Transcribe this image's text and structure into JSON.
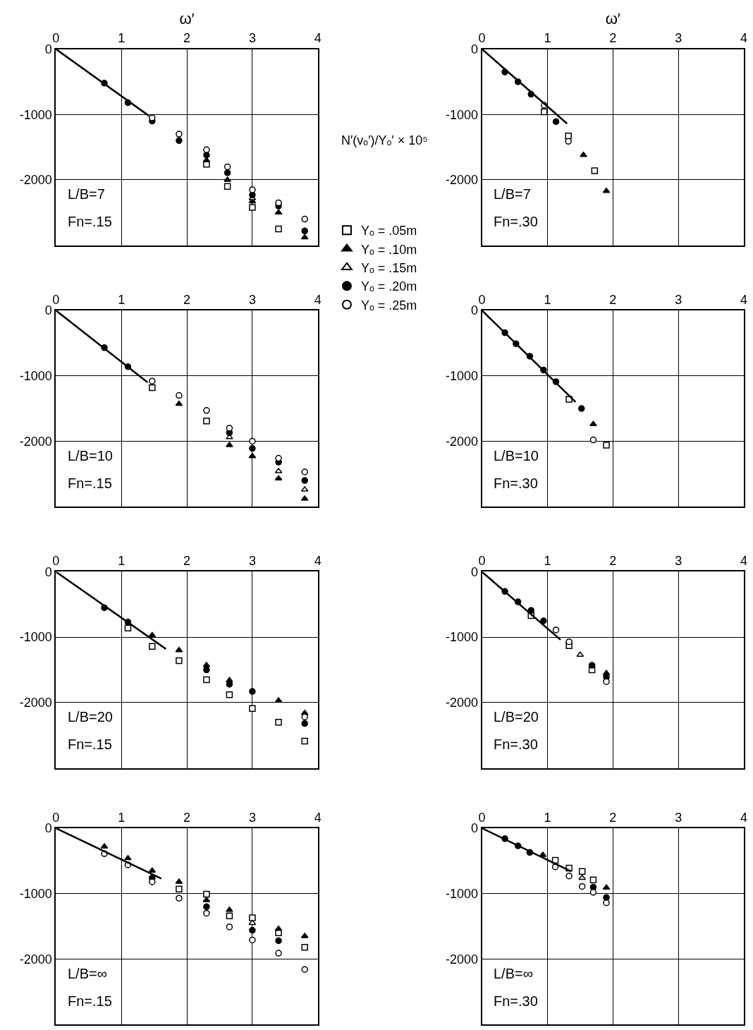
{
  "chart_data": [
    {
      "type": "scatter",
      "xlabel": "ω′",
      "legend": "right",
      "xlim": [
        0,
        4
      ],
      "ylim": [
        -3000,
        0
      ],
      "xticks": [
        0,
        1,
        2,
        3,
        4
      ],
      "yticks": [
        0,
        -1000,
        -2000
      ],
      "grid": true,
      "annotations": [
        "L/B=7",
        "Fn=.15"
      ],
      "x": [
        0.74,
        1.1,
        1.47,
        1.88,
        2.3,
        2.62,
        3.0,
        3.4,
        3.8
      ],
      "series": [
        {
          "name": "Yₒ = .05m",
          "marker": "square",
          "color": "#ffffff",
          "values": [
            null,
            null,
            null,
            null,
            -1760,
            -2100,
            -2420,
            -2750,
            null
          ]
        },
        {
          "name": "Yₒ = .10m",
          "marker": "triangle",
          "color": "#000000",
          "values": [
            null,
            null,
            null,
            null,
            -1700,
            -2000,
            -2330,
            -2500,
            -2880
          ]
        },
        {
          "name": "Yₒ = .15m",
          "marker": "triangle",
          "color": "#ffffff",
          "values": [
            null,
            null,
            null,
            null,
            null,
            null,
            -2280,
            null,
            null
          ]
        },
        {
          "name": "Yₒ = .20m",
          "marker": "circle",
          "color": "#000000",
          "values": [
            -520,
            -820,
            -1100,
            -1400,
            -1620,
            -1890,
            -2230,
            -2400,
            -2780
          ]
        },
        {
          "name": "Yₒ = .25m",
          "marker": "circle",
          "color": "#ffffff",
          "values": [
            null,
            null,
            -1050,
            -1300,
            -1540,
            -1800,
            -2150,
            -2350,
            -2600
          ]
        },
        {
          "type": "line",
          "color": "#000000",
          "x": [
            0,
            1.42
          ],
          "values": [
            0,
            -1020
          ]
        }
      ]
    },
    {
      "type": "scatter",
      "xlabel": "ω′",
      "ylabel": "N′(vₒ′)/Yₒ′ × 10⁵",
      "xlim": [
        0,
        4
      ],
      "ylim": [
        -3000,
        0
      ],
      "xticks": [
        0,
        1,
        2,
        3,
        4
      ],
      "yticks": [
        0,
        -1000,
        -2000
      ],
      "grid": true,
      "annotations": [
        "L/B=7",
        "Fn=.30"
      ],
      "x": [
        0.35,
        0.55,
        0.75,
        0.95,
        1.13,
        1.32,
        1.55,
        1.72,
        1.9
      ],
      "series": [
        {
          "marker": "square",
          "color": "#ffffff",
          "values": [
            null,
            null,
            null,
            -960,
            null,
            -1330,
            null,
            -1860,
            null
          ]
        },
        {
          "marker": "triangle",
          "color": "#000000",
          "values": [
            null,
            null,
            null,
            null,
            null,
            null,
            -1620,
            null,
            -2170
          ]
        },
        {
          "marker": "triangle",
          "color": "#ffffff",
          "values": [
            null,
            null,
            null,
            null,
            null,
            null,
            null,
            null,
            null
          ]
        },
        {
          "marker": "circle",
          "color": "#000000",
          "values": [
            -350,
            -500,
            -690,
            null,
            -1110,
            null,
            null,
            null,
            null
          ]
        },
        {
          "marker": "circle",
          "color": "#ffffff",
          "values": [
            null,
            null,
            null,
            -860,
            null,
            -1410,
            null,
            null,
            null
          ]
        },
        {
          "type": "line",
          "color": "#000000",
          "x": [
            0,
            1.3
          ],
          "values": [
            0,
            -1140
          ]
        }
      ]
    },
    {
      "type": "scatter",
      "xlim": [
        0,
        4
      ],
      "ylim": [
        -3000,
        0
      ],
      "xticks": [
        0,
        1,
        2,
        3,
        4
      ],
      "yticks": [
        0,
        -1000,
        -2000
      ],
      "grid": true,
      "annotations": [
        "L/B=10",
        "Fn=.15"
      ],
      "x": [
        0.74,
        1.1,
        1.47,
        1.88,
        2.3,
        2.65,
        3.0,
        3.4,
        3.8
      ],
      "series": [
        {
          "marker": "square",
          "color": "#ffffff",
          "values": [
            null,
            null,
            -1180,
            null,
            -1690,
            null,
            null,
            null,
            null
          ]
        },
        {
          "marker": "triangle",
          "color": "#000000",
          "values": [
            null,
            null,
            null,
            -1430,
            null,
            -2060,
            -2230,
            -2570,
            -2880
          ]
        },
        {
          "marker": "triangle",
          "color": "#ffffff",
          "values": [
            null,
            null,
            null,
            null,
            null,
            -1940,
            null,
            -2460,
            -2740
          ]
        },
        {
          "marker": "circle",
          "color": "#000000",
          "values": [
            -570,
            -860,
            null,
            null,
            null,
            -1870,
            -2110,
            -2320,
            -2600
          ]
        },
        {
          "marker": "circle",
          "color": "#ffffff",
          "values": [
            null,
            null,
            -1080,
            -1300,
            -1530,
            -1800,
            -2000,
            -2260,
            -2470
          ]
        },
        {
          "type": "line",
          "color": "#000000",
          "x": [
            0,
            1.4
          ],
          "values": [
            0,
            -1100
          ]
        }
      ]
    },
    {
      "type": "scatter",
      "xlim": [
        0,
        4
      ],
      "ylim": [
        -3000,
        0
      ],
      "xticks": [
        0,
        1,
        2,
        3,
        4
      ],
      "yticks": [
        0,
        -1000,
        -2000
      ],
      "grid": true,
      "annotations": [
        "L/B=10",
        "Fn=.30"
      ],
      "x": [
        0.35,
        0.52,
        0.73,
        0.94,
        1.13,
        1.33,
        1.52,
        1.7,
        1.9
      ],
      "series": [
        {
          "marker": "square",
          "color": "#ffffff",
          "values": [
            null,
            null,
            null,
            null,
            null,
            -1360,
            null,
            null,
            -2060
          ]
        },
        {
          "marker": "triangle",
          "color": "#000000",
          "values": [
            null,
            null,
            null,
            null,
            null,
            null,
            null,
            -1740,
            null
          ]
        },
        {
          "marker": "triangle",
          "color": "#ffffff",
          "values": [
            null,
            null,
            null,
            null,
            null,
            null,
            null,
            null,
            null
          ]
        },
        {
          "marker": "circle",
          "color": "#000000",
          "values": [
            -340,
            -510,
            -700,
            -910,
            -1090,
            null,
            -1500,
            null,
            null
          ]
        },
        {
          "marker": "circle",
          "color": "#ffffff",
          "values": [
            null,
            null,
            null,
            null,
            null,
            null,
            null,
            -1980,
            null
          ]
        },
        {
          "type": "line",
          "color": "#000000",
          "x": [
            0,
            1.43
          ],
          "values": [
            0,
            -1400
          ]
        }
      ]
    },
    {
      "type": "scatter",
      "xlim": [
        0,
        4
      ],
      "ylim": [
        -3000,
        0
      ],
      "xticks": [
        0,
        1,
        2,
        3,
        4
      ],
      "yticks": [
        0,
        -1000,
        -2000
      ],
      "grid": true,
      "annotations": [
        "L/B=20",
        "Fn=.15"
      ],
      "x": [
        0.74,
        1.1,
        1.47,
        1.88,
        2.3,
        2.65,
        3.0,
        3.4,
        3.8
      ],
      "series": [
        {
          "marker": "square",
          "color": "#ffffff",
          "values": [
            null,
            -860,
            -1140,
            -1360,
            -1650,
            -1880,
            -2090,
            -2300,
            -2590
          ]
        },
        {
          "marker": "triangle",
          "color": "#000000",
          "values": [
            null,
            null,
            -970,
            -1200,
            -1430,
            -1660,
            null,
            -1970,
            -2160
          ]
        },
        {
          "marker": "triangle",
          "color": "#ffffff",
          "values": [
            null,
            null,
            null,
            null,
            null,
            null,
            null,
            null,
            null
          ]
        },
        {
          "marker": "circle",
          "color": "#000000",
          "values": [
            -550,
            -770,
            null,
            null,
            -1500,
            -1720,
            -1830,
            null,
            -2320
          ]
        },
        {
          "marker": "circle",
          "color": "#ffffff",
          "values": [
            null,
            null,
            null,
            null,
            null,
            null,
            null,
            null,
            -2220
          ]
        },
        {
          "type": "line",
          "color": "#000000",
          "x": [
            0,
            1.68
          ],
          "values": [
            0,
            -1180
          ]
        }
      ]
    },
    {
      "type": "scatter",
      "xlim": [
        0,
        4
      ],
      "ylim": [
        -3000,
        0
      ],
      "xticks": [
        0,
        1,
        2,
        3,
        4
      ],
      "yticks": [
        0,
        -1000,
        -2000
      ],
      "grid": true,
      "annotations": [
        "L/B=20",
        "Fn=.30"
      ],
      "x": [
        0.35,
        0.55,
        0.75,
        0.94,
        1.13,
        1.33,
        1.5,
        1.68,
        1.9
      ],
      "series": [
        {
          "marker": "square",
          "color": "#ffffff",
          "values": [
            null,
            null,
            -670,
            null,
            null,
            -1130,
            null,
            -1500,
            null
          ]
        },
        {
          "marker": "triangle",
          "color": "#000000",
          "values": [
            null,
            null,
            null,
            null,
            null,
            null,
            null,
            null,
            -1550
          ]
        },
        {
          "marker": "triangle",
          "color": "#ffffff",
          "values": [
            null,
            null,
            null,
            null,
            null,
            null,
            -1270,
            null,
            null
          ]
        },
        {
          "marker": "circle",
          "color": "#000000",
          "values": [
            -300,
            -460,
            -590,
            -750,
            null,
            null,
            null,
            -1430,
            -1610
          ]
        },
        {
          "marker": "circle",
          "color": "#ffffff",
          "values": [
            null,
            null,
            null,
            null,
            -890,
            -1070,
            null,
            null,
            -1680
          ]
        },
        {
          "type": "line",
          "color": "#000000",
          "x": [
            0,
            1.2
          ],
          "values": [
            0,
            -1040
          ]
        }
      ]
    },
    {
      "type": "scatter",
      "xlim": [
        0,
        4
      ],
      "ylim": [
        -3000,
        0
      ],
      "xticks": [
        0,
        1,
        2,
        3,
        4
      ],
      "yticks": [
        0,
        -1000,
        -2000
      ],
      "grid": true,
      "annotations": [
        "L/B=∞",
        "Fn=.15"
      ],
      "x": [
        0.74,
        1.1,
        1.47,
        1.88,
        2.3,
        2.65,
        3.0,
        3.4,
        3.8
      ],
      "series": [
        {
          "marker": "square",
          "color": "#ffffff",
          "values": [
            null,
            null,
            null,
            -930,
            -1010,
            -1340,
            -1370,
            -1600,
            -1820
          ]
        },
        {
          "marker": "triangle",
          "color": "#000000",
          "values": [
            -280,
            -460,
            -650,
            -820,
            -1100,
            -1250,
            null,
            -1540,
            -1650
          ]
        },
        {
          "marker": "triangle",
          "color": "#ffffff",
          "values": [
            null,
            null,
            null,
            null,
            null,
            null,
            -1450,
            null,
            null
          ]
        },
        {
          "marker": "circle",
          "color": "#000000",
          "values": [
            null,
            null,
            -760,
            null,
            -1200,
            null,
            -1560,
            -1720,
            null
          ]
        },
        {
          "marker": "circle",
          "color": "#ffffff",
          "values": [
            -390,
            -560,
            -820,
            -1070,
            -1300,
            -1510,
            -1710,
            -1910,
            -2160
          ]
        },
        {
          "type": "line",
          "color": "#000000",
          "x": [
            0,
            1.61
          ],
          "values": [
            0,
            -770
          ]
        }
      ]
    },
    {
      "type": "scatter",
      "xlim": [
        0,
        4
      ],
      "ylim": [
        -3000,
        0
      ],
      "xticks": [
        0,
        1,
        2,
        3,
        4
      ],
      "yticks": [
        0,
        -1000,
        -2000
      ],
      "grid": true,
      "annotations": [
        "L/B=∞",
        "Fn=.30"
      ],
      "x": [
        0.35,
        0.55,
        0.73,
        0.93,
        1.12,
        1.33,
        1.53,
        1.7,
        1.9
      ],
      "series": [
        {
          "marker": "square",
          "color": "#ffffff",
          "values": [
            null,
            null,
            null,
            null,
            -490,
            -610,
            -660,
            -790,
            null
          ]
        },
        {
          "marker": "triangle",
          "color": "#000000",
          "values": [
            null,
            null,
            null,
            -410,
            null,
            null,
            null,
            null,
            -910
          ]
        },
        {
          "marker": "triangle",
          "color": "#ffffff",
          "values": [
            null,
            null,
            null,
            null,
            null,
            null,
            -760,
            null,
            null
          ]
        },
        {
          "marker": "circle",
          "color": "#000000",
          "values": [
            -160,
            -270,
            -370,
            null,
            null,
            null,
            null,
            -900,
            -1060
          ]
        },
        {
          "marker": "circle",
          "color": "#ffffff",
          "values": [
            null,
            null,
            null,
            null,
            -590,
            -730,
            -890,
            -980,
            -1140
          ]
        },
        {
          "type": "line",
          "color": "#000000",
          "x": [
            0,
            1.36
          ],
          "values": [
            0,
            -660
          ]
        }
      ]
    }
  ]
}
